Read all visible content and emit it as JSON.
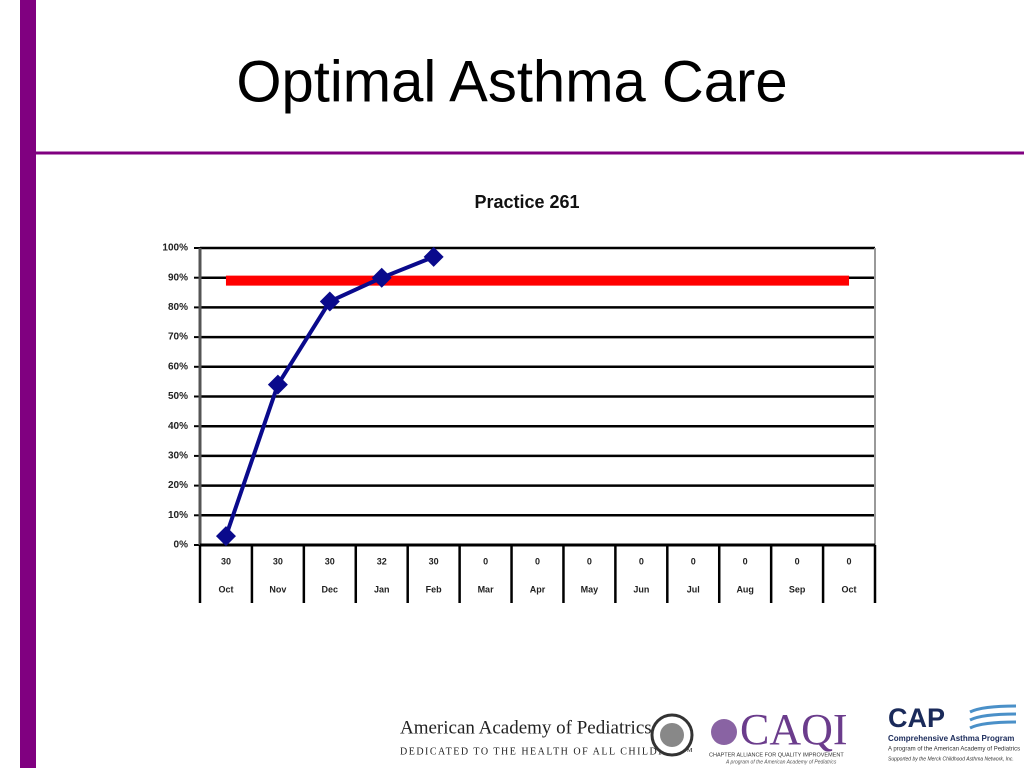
{
  "slide": {
    "title": "Optimal Asthma Care",
    "footer": {
      "aap_name": "American Academy of Pediatrics",
      "aap_motto": "DEDICATED TO THE HEALTH OF ALL CHILDREN™",
      "caqi_name": "CAQI",
      "caqi_full": "CHAPTER ALLIANCE FOR QUALITY IMPROVEMENT",
      "caqi_note": "A program of the American Academy of Pediatrics",
      "cap_name": "CAP",
      "cap_full": "Comprehensive Asthma Program",
      "cap_note": "A program of the American Academy of Pediatrics",
      "cap_support": "Supported by the Merck Childhood Asthma Network, Inc."
    }
  },
  "chart_data": {
    "type": "line",
    "title": "Practice 261",
    "categories": [
      "Oct",
      "Nov",
      "Dec",
      "Jan",
      "Feb",
      "Mar",
      "Apr",
      "May",
      "Jun",
      "Jul",
      "Aug",
      "Sep",
      "Oct"
    ],
    "category_counts": [
      "30",
      "30",
      "30",
      "32",
      "30",
      "0",
      "0",
      "0",
      "0",
      "0",
      "0",
      "0",
      "0"
    ],
    "series": [
      {
        "color": "#0a0a8c",
        "values": [
          3,
          54,
          82,
          90,
          97,
          null,
          null,
          null,
          null,
          null,
          null,
          null,
          null
        ]
      },
      {
        "color": "#ff0000",
        "values": [
          89,
          89,
          89,
          89,
          89,
          89,
          89,
          89,
          89,
          89,
          89,
          89,
          89
        ]
      }
    ],
    "ylim": [
      0,
      100
    ],
    "yticks": [
      {
        "value": 0,
        "label": "0%"
      },
      {
        "value": 10,
        "label": "10%"
      },
      {
        "value": 20,
        "label": "20%"
      },
      {
        "value": 30,
        "label": "30%"
      },
      {
        "value": 40,
        "label": "40%"
      },
      {
        "value": 50,
        "label": "50%"
      },
      {
        "value": 60,
        "label": "60%"
      },
      {
        "value": 70,
        "label": "70%"
      },
      {
        "value": 80,
        "label": "80%"
      },
      {
        "value": 90,
        "label": "90%"
      },
      {
        "value": 100,
        "label": "100%"
      }
    ],
    "grid": true
  }
}
